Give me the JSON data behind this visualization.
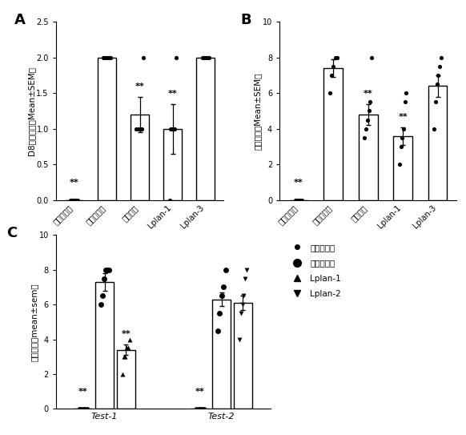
{
  "panel_A": {
    "title": "A",
    "ylabel": "D8腹泻评分（Mean±SEM）",
    "categories": [
      "正常对照组",
      "模型对照组",
      "洛哌丁胺",
      "Lplan-1",
      "Lplan-3"
    ],
    "bar_means": [
      0.0,
      2.0,
      1.2,
      1.0,
      2.0
    ],
    "bar_sems": [
      0.0,
      0.0,
      0.25,
      0.35,
      0.0
    ],
    "ylim": [
      0,
      2.5
    ],
    "yticks": [
      0.0,
      0.5,
      1.0,
      1.5,
      2.0,
      2.5
    ],
    "sig_labels": [
      "**",
      "",
      "**",
      "**",
      ""
    ],
    "dot_data": {
      "0": [
        0.0,
        0.0,
        0.0,
        0.0,
        0.0,
        0.0
      ],
      "1": [
        2.0,
        2.0,
        2.0,
        2.0,
        2.0,
        2.0
      ],
      "2": [
        1.0,
        1.0,
        1.0,
        1.0,
        2.0
      ],
      "3": [
        0.0,
        1.0,
        1.0,
        1.0,
        1.0,
        2.0
      ],
      "4": [
        2.0,
        2.0,
        2.0,
        2.0,
        2.0
      ]
    }
  },
  "panel_B": {
    "title": "B",
    "ylabel": "腹泻总分（Mean±SEM）",
    "categories": [
      "正常对照组",
      "模型对照组",
      "洛哌丁胺",
      "Lplan-1",
      "Lplan-3"
    ],
    "bar_means": [
      0.0,
      7.4,
      4.8,
      3.6,
      6.4
    ],
    "bar_sems": [
      0.0,
      0.5,
      0.6,
      0.5,
      0.6
    ],
    "ylim": [
      0,
      10
    ],
    "yticks": [
      0,
      2,
      4,
      6,
      8,
      10
    ],
    "sig_labels": [
      "**",
      "",
      "**",
      "**",
      ""
    ],
    "dot_data": {
      "0": [
        0.0,
        0.0,
        0.0,
        0.0,
        0.0,
        0.0
      ],
      "1": [
        6.0,
        7.0,
        7.5,
        8.0,
        8.0
      ],
      "2": [
        3.5,
        4.0,
        4.5,
        5.0,
        5.5,
        8.0
      ],
      "3": [
        2.0,
        3.0,
        3.5,
        4.0,
        5.5,
        6.0
      ],
      "4": [
        4.0,
        5.5,
        6.5,
        7.0,
        7.5,
        8.0
      ]
    }
  },
  "panel_C": {
    "title": "C",
    "ylabel": "腹泻总分（mean±sem）",
    "groups": [
      {
        "label": "Test-1",
        "bars": [
          {
            "cat": 0,
            "mean": 0.0,
            "sem": 0.0,
            "sig": "**",
            "dots": [
              0.0,
              0.0,
              0.0,
              0.0,
              0.0
            ]
          },
          {
            "cat": 1,
            "mean": 7.3,
            "sem": 0.5,
            "sig": "",
            "dots": [
              6.0,
              6.5,
              7.5,
              8.0,
              8.0,
              8.0
            ]
          },
          {
            "cat": 2,
            "mean": 3.4,
            "sem": 0.3,
            "sig": "**",
            "dots": [
              2.0,
              3.0,
              3.0,
              3.5,
              3.5,
              4.0
            ]
          }
        ]
      },
      {
        "label": "Test-2",
        "bars": [
          {
            "cat": 0,
            "mean": 0.0,
            "sem": 0.0,
            "sig": "**",
            "dots": [
              0.0,
              0.0,
              0.0,
              0.0,
              0.0
            ]
          },
          {
            "cat": 1,
            "mean": 6.3,
            "sem": 0.4,
            "sig": "",
            "dots": [
              4.5,
              5.5,
              6.5,
              7.0,
              8.0
            ]
          },
          {
            "cat": 3,
            "mean": 6.1,
            "sem": 0.4,
            "sig": "",
            "dots": [
              4.0,
              5.5,
              6.0,
              6.5,
              7.5,
              8.0
            ]
          }
        ]
      }
    ],
    "ylim": [
      0,
      10
    ],
    "yticks": [
      0,
      2,
      4,
      6,
      8,
      10
    ],
    "legend": [
      {
        "label": "正常对照组",
        "marker": "o",
        "markersize": 4
      },
      {
        "label": "模型对照组",
        "marker": "o",
        "markersize": 7
      },
      {
        "label": "Lplan-1",
        "marker": "^",
        "markersize": 6
      },
      {
        "label": "Lplan-2",
        "marker": "v",
        "markersize": 6
      }
    ],
    "cat_markers": [
      "o",
      "o",
      "^",
      "v"
    ],
    "cat_markersizes": [
      12,
      25,
      18,
      18
    ]
  },
  "bar_color": "#ffffff",
  "bar_edgecolor": "#000000",
  "sig_fontsize": 8,
  "label_fontsize": 7.5,
  "tick_fontsize": 7,
  "title_fontsize": 13
}
